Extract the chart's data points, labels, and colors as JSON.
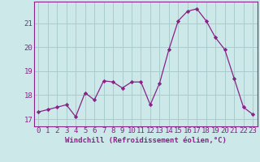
{
  "x": [
    0,
    1,
    2,
    3,
    4,
    5,
    6,
    7,
    8,
    9,
    10,
    11,
    12,
    13,
    14,
    15,
    16,
    17,
    18,
    19,
    20,
    21,
    22,
    23
  ],
  "y": [
    17.3,
    17.4,
    17.5,
    17.6,
    17.1,
    18.1,
    17.8,
    18.6,
    18.55,
    18.3,
    18.55,
    18.55,
    17.6,
    18.5,
    19.9,
    21.1,
    21.5,
    21.6,
    21.1,
    20.4,
    19.9,
    18.7,
    17.5,
    17.2
  ],
  "line_color": "#882288",
  "marker": "D",
  "marker_size": 2.2,
  "background_color": "#cce8e8",
  "grid_color": "#aacccc",
  "ylabel_ticks": [
    17,
    18,
    19,
    20,
    21
  ],
  "xlabel": "Windchill (Refroidissement éolien,°C)",
  "xlabel_fontsize": 6.5,
  "tick_fontsize": 6.5,
  "ylim": [
    16.7,
    21.9
  ],
  "xlim": [
    -0.5,
    23.5
  ],
  "linewidth": 0.9
}
